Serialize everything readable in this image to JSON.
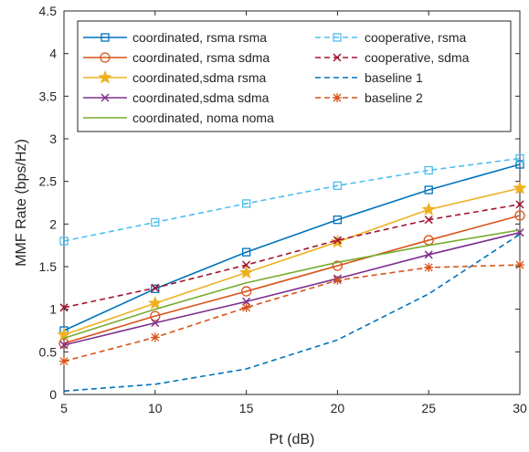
{
  "chart_data": {
    "type": "line",
    "title": "",
    "xlabel": "Pt (dB)",
    "ylabel": "MMF Rate (bps/Hz)",
    "xlim": [
      5,
      30
    ],
    "ylim": [
      0,
      4.5
    ],
    "xticks": [
      "5",
      "10",
      "15",
      "20",
      "25",
      "30"
    ],
    "yticks": [
      "0",
      "0.5",
      "1",
      "1.5",
      "2",
      "2.5",
      "3",
      "3.5",
      "4",
      "4.5"
    ],
    "grid": false,
    "legend_position": "top",
    "x": [
      5,
      10,
      15,
      20,
      25,
      30
    ],
    "series": [
      {
        "name": "coordinated, rsma rsma",
        "values": [
          0.75,
          1.24,
          1.67,
          2.05,
          2.4,
          2.7
        ],
        "color": "#0072BD",
        "dash": "solid",
        "marker": "square"
      },
      {
        "name": "coordinated, rsma sdma",
        "values": [
          0.6,
          0.92,
          1.21,
          1.51,
          1.81,
          2.1
        ],
        "color": "#D95319",
        "dash": "solid",
        "marker": "circle"
      },
      {
        "name": "coordinated,sdma rsma",
        "values": [
          0.7,
          1.07,
          1.43,
          1.79,
          2.17,
          2.42
        ],
        "color": "#EDB120",
        "dash": "solid",
        "marker": "star"
      },
      {
        "name": "coordinated,sdma sdma",
        "values": [
          0.58,
          0.84,
          1.09,
          1.36,
          1.64,
          1.9
        ],
        "color": "#7E2F8E",
        "dash": "solid",
        "marker": "x"
      },
      {
        "name": "coordinated, noma noma",
        "values": [
          0.66,
          1.0,
          1.31,
          1.55,
          1.75,
          1.93
        ],
        "color": "#77AC30",
        "dash": "solid",
        "marker": "none"
      },
      {
        "name": "cooperative, rsma",
        "values": [
          1.8,
          2.02,
          2.24,
          2.45,
          2.63,
          2.77
        ],
        "color": "#4DBEEE",
        "dash": "dashed",
        "marker": "square"
      },
      {
        "name": "cooperative, sdma",
        "values": [
          1.02,
          1.25,
          1.52,
          1.81,
          2.05,
          2.23
        ],
        "color": "#A2142F",
        "dash": "dashed",
        "marker": "x"
      },
      {
        "name": "baseline 1",
        "values": [
          0.04,
          0.12,
          0.3,
          0.64,
          1.18,
          1.88
        ],
        "color": "#0072BD",
        "dash": "dashed",
        "marker": "none"
      },
      {
        "name": "baseline 2",
        "values": [
          0.39,
          0.67,
          1.02,
          1.34,
          1.49,
          1.52
        ],
        "color": "#D95319",
        "dash": "dashed",
        "marker": "asterisk"
      }
    ]
  }
}
